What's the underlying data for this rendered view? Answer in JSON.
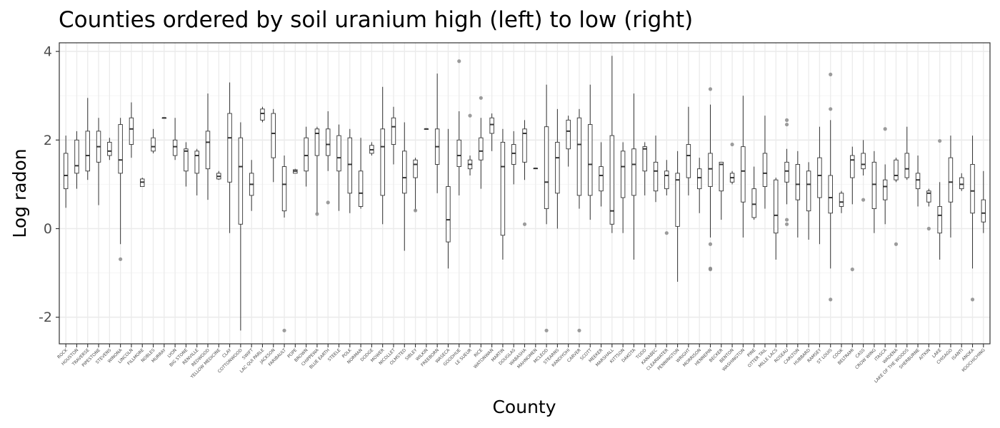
{
  "chart_data": {
    "type": "boxplot",
    "title": "Counties ordered by soil uranium high (left) to low (right)",
    "xlabel": "County",
    "ylabel": "Log radon",
    "ylim": [
      -2.6,
      4.2
    ],
    "yticks": [
      -2,
      0,
      2,
      4
    ],
    "grid": true,
    "legend": "none",
    "colors": {
      "box": "#333333",
      "outlier": "#8c8c8c",
      "grid_major": "#ebebeb",
      "grid_minor": "#f5f5f5",
      "panel_border": "#333333"
    },
    "boxes": [
      {
        "county": "ROCK",
        "q1": 0.9,
        "median": 1.2,
        "q3": 1.7,
        "lower": 0.47,
        "upper": 2.1,
        "outliers": []
      },
      {
        "county": "HOUSTON",
        "q1": 1.25,
        "median": 1.42,
        "q3": 2.0,
        "lower": 0.9,
        "upper": 2.2,
        "outliers": []
      },
      {
        "county": "TRAVERSE",
        "q1": 1.3,
        "median": 1.65,
        "q3": 2.2,
        "lower": 1.1,
        "upper": 2.95,
        "outliers": []
      },
      {
        "county": "PIPESTONE",
        "q1": 1.5,
        "median": 1.85,
        "q3": 2.2,
        "lower": 0.53,
        "upper": 2.5,
        "outliers": []
      },
      {
        "county": "STEVENS",
        "q1": 1.65,
        "median": 1.75,
        "q3": 1.95,
        "lower": 1.55,
        "upper": 2.05,
        "outliers": []
      },
      {
        "county": "WINONA",
        "q1": 1.25,
        "median": 1.55,
        "q3": 2.35,
        "lower": -0.35,
        "upper": 2.5,
        "outliers": [
          -0.69
        ]
      },
      {
        "county": "LINCOLN",
        "q1": 1.9,
        "median": 2.25,
        "q3": 2.5,
        "lower": 1.6,
        "upper": 2.85,
        "outliers": []
      },
      {
        "county": "FILLMORE",
        "q1": 0.95,
        "median": 1.05,
        "q3": 1.12,
        "lower": 0.95,
        "upper": 1.15,
        "outliers": []
      },
      {
        "county": "NOBLES",
        "q1": 1.75,
        "median": 1.85,
        "q3": 2.05,
        "lower": 1.7,
        "upper": 2.25,
        "outliers": []
      },
      {
        "county": "MURRAY",
        "q1": 2.5,
        "median": 2.5,
        "q3": 2.5,
        "lower": 2.5,
        "upper": 2.5,
        "outliers": []
      },
      {
        "county": "LYON",
        "q1": 1.65,
        "median": 1.85,
        "q3": 2.0,
        "lower": 1.55,
        "upper": 2.5,
        "outliers": []
      },
      {
        "county": "BIG STONE",
        "q1": 1.3,
        "median": 1.75,
        "q3": 1.8,
        "lower": 0.95,
        "upper": 1.95,
        "outliers": []
      },
      {
        "county": "RENVILLE",
        "q1": 1.25,
        "median": 1.65,
        "q3": 1.75,
        "lower": 0.75,
        "upper": 1.8,
        "outliers": []
      },
      {
        "county": "REDWOOD",
        "q1": 1.35,
        "median": 1.95,
        "q3": 2.2,
        "lower": 0.65,
        "upper": 3.05,
        "outliers": []
      },
      {
        "county": "YELLOW MEDICINE",
        "q1": 1.12,
        "median": 1.18,
        "q3": 1.25,
        "lower": 1.1,
        "upper": 1.3,
        "outliers": []
      },
      {
        "county": "CLAY",
        "q1": 1.05,
        "median": 2.05,
        "q3": 2.6,
        "lower": -0.1,
        "upper": 3.3,
        "outliers": []
      },
      {
        "county": "COTTONWOOD",
        "q1": 0.1,
        "median": 1.4,
        "q3": 2.05,
        "lower": -2.3,
        "upper": 2.4,
        "outliers": []
      },
      {
        "county": "SWIFT",
        "q1": 0.75,
        "median": 1.0,
        "q3": 1.25,
        "lower": 0.4,
        "upper": 1.55,
        "outliers": []
      },
      {
        "county": "LAC QUI PARLE",
        "q1": 2.45,
        "median": 2.6,
        "q3": 2.7,
        "lower": 2.4,
        "upper": 2.75,
        "outliers": []
      },
      {
        "county": "JACKSON",
        "q1": 1.6,
        "median": 2.15,
        "q3": 2.6,
        "lower": 1.05,
        "upper": 2.7,
        "outliers": []
      },
      {
        "county": "FARIBAULT",
        "q1": 0.4,
        "median": 1.0,
        "q3": 1.4,
        "lower": 0.25,
        "upper": 1.65,
        "outliers": [
          -2.3
        ]
      },
      {
        "county": "POPE",
        "q1": 1.25,
        "median": 1.3,
        "q3": 1.33,
        "lower": 1.25,
        "upper": 1.35,
        "outliers": []
      },
      {
        "county": "BROWN",
        "q1": 1.3,
        "median": 1.65,
        "q3": 2.05,
        "lower": 0.95,
        "upper": 2.3,
        "outliers": []
      },
      {
        "county": "CHIPPEWA",
        "q1": 1.65,
        "median": 2.15,
        "q3": 2.25,
        "lower": 0.33,
        "upper": 2.3,
        "outliers": [
          0.33
        ]
      },
      {
        "county": "BLUE EARTH",
        "q1": 1.65,
        "median": 1.9,
        "q3": 2.25,
        "lower": 1.3,
        "upper": 2.65,
        "outliers": [
          0.59
        ]
      },
      {
        "county": "STEELE",
        "q1": 1.3,
        "median": 1.6,
        "q3": 2.1,
        "lower": 0.4,
        "upper": 2.35,
        "outliers": []
      },
      {
        "county": "POLK",
        "q1": 0.8,
        "median": 1.45,
        "q3": 2.05,
        "lower": 0.35,
        "upper": 2.25,
        "outliers": []
      },
      {
        "county": "NORMAN",
        "q1": 0.5,
        "median": 0.8,
        "q3": 1.3,
        "lower": 0.45,
        "upper": 2.05,
        "outliers": []
      },
      {
        "county": "DODGE",
        "q1": 1.7,
        "median": 1.78,
        "q3": 1.88,
        "lower": 1.65,
        "upper": 1.95,
        "outliers": []
      },
      {
        "county": "MOWER",
        "q1": 0.75,
        "median": 1.85,
        "q3": 2.25,
        "lower": 0.1,
        "upper": 3.2,
        "outliers": []
      },
      {
        "county": "NICOLLET",
        "q1": 1.9,
        "median": 2.3,
        "q3": 2.5,
        "lower": 1.45,
        "upper": 2.75,
        "outliers": []
      },
      {
        "county": "OLMSTED",
        "q1": 0.8,
        "median": 1.15,
        "q3": 1.75,
        "lower": -0.5,
        "upper": 2.4,
        "outliers": []
      },
      {
        "county": "SIBLEY",
        "q1": 1.15,
        "median": 1.45,
        "q3": 1.55,
        "lower": 0.4,
        "upper": 1.6,
        "outliers": [
          0.41
        ]
      },
      {
        "county": "WILKIN",
        "q1": 2.25,
        "median": 2.25,
        "q3": 2.25,
        "lower": 2.25,
        "upper": 2.25,
        "outliers": []
      },
      {
        "county": "FREEBORN",
        "q1": 1.45,
        "median": 1.85,
        "q3": 2.25,
        "lower": 0.8,
        "upper": 3.5,
        "outliers": []
      },
      {
        "county": "WASECA",
        "q1": -0.3,
        "median": 0.2,
        "q3": 0.95,
        "lower": -0.9,
        "upper": 2.25,
        "outliers": []
      },
      {
        "county": "GOODHUE",
        "q1": 1.4,
        "median": 1.65,
        "q3": 2.0,
        "lower": 0.75,
        "upper": 2.65,
        "outliers": [
          3.78
        ]
      },
      {
        "county": "LE SUEUR",
        "q1": 1.35,
        "median": 1.45,
        "q3": 1.55,
        "lower": 1.2,
        "upper": 1.65,
        "outliers": [
          2.55
        ]
      },
      {
        "county": "RICE",
        "q1": 1.55,
        "median": 1.75,
        "q3": 2.05,
        "lower": 0.9,
        "upper": 2.5,
        "outliers": [
          2.95
        ]
      },
      {
        "county": "WATONWAN",
        "q1": 2.15,
        "median": 2.35,
        "q3": 2.5,
        "lower": 1.75,
        "upper": 2.6,
        "outliers": []
      },
      {
        "county": "MARTIN",
        "q1": -0.15,
        "median": 1.4,
        "q3": 1.95,
        "lower": -0.7,
        "upper": 2.25,
        "outliers": []
      },
      {
        "county": "DOUGLAS",
        "q1": 1.45,
        "median": 1.7,
        "q3": 1.9,
        "lower": 1.0,
        "upper": 2.2,
        "outliers": []
      },
      {
        "county": "WABASHA",
        "q1": 1.5,
        "median": 2.15,
        "q3": 2.25,
        "lower": 1.1,
        "upper": 2.45,
        "outliers": [
          0.1
        ]
      },
      {
        "county": "MAHNOMEN",
        "q1": 1.36,
        "median": 1.36,
        "q3": 1.36,
        "lower": 1.36,
        "upper": 1.36,
        "outliers": []
      },
      {
        "county": "MCLEOD",
        "q1": 0.45,
        "median": 1.05,
        "q3": 2.3,
        "lower": 0.1,
        "upper": 3.25,
        "outliers": [
          -2.3
        ]
      },
      {
        "county": "STEARNS",
        "q1": 0.8,
        "median": 1.6,
        "q3": 1.95,
        "lower": 0.0,
        "upper": 2.7,
        "outliers": []
      },
      {
        "county": "KANDIYOHI",
        "q1": 1.8,
        "median": 2.2,
        "q3": 2.45,
        "lower": 1.4,
        "upper": 2.55,
        "outliers": []
      },
      {
        "county": "CARVER",
        "q1": 0.75,
        "median": 1.9,
        "q3": 2.5,
        "lower": 0.45,
        "upper": 2.7,
        "outliers": [
          -2.3
        ]
      },
      {
        "county": "SCOTT",
        "q1": 0.75,
        "median": 1.45,
        "q3": 2.35,
        "lower": 0.2,
        "upper": 3.25,
        "outliers": []
      },
      {
        "county": "MEEKER",
        "q1": 0.85,
        "median": 1.2,
        "q3": 1.4,
        "lower": 0.5,
        "upper": 1.95,
        "outliers": []
      },
      {
        "county": "MARSHALL",
        "q1": 0.1,
        "median": 0.4,
        "q3": 2.1,
        "lower": -0.1,
        "upper": 3.9,
        "outliers": []
      },
      {
        "county": "KITTSON",
        "q1": 0.7,
        "median": 1.4,
        "q3": 1.75,
        "lower": -0.1,
        "upper": 1.95,
        "outliers": []
      },
      {
        "county": "DAKOTA",
        "q1": 0.75,
        "median": 1.45,
        "q3": 1.8,
        "lower": -0.7,
        "upper": 3.05,
        "outliers": []
      },
      {
        "county": "TODD",
        "q1": 1.3,
        "median": 1.8,
        "q3": 1.85,
        "lower": 0.75,
        "upper": 1.95,
        "outliers": []
      },
      {
        "county": "KANABEC",
        "q1": 0.85,
        "median": 1.3,
        "q3": 1.5,
        "lower": 0.6,
        "upper": 2.1,
        "outliers": []
      },
      {
        "county": "CLEARWATER",
        "q1": 0.9,
        "median": 1.2,
        "q3": 1.3,
        "lower": 0.75,
        "upper": 1.55,
        "outliers": [
          -0.1
        ]
      },
      {
        "county": "PENNINGTON",
        "q1": 0.05,
        "median": 1.1,
        "q3": 1.25,
        "lower": -1.2,
        "upper": 1.75,
        "outliers": []
      },
      {
        "county": "WRIGHT",
        "q1": 1.15,
        "median": 1.65,
        "q3": 1.9,
        "lower": 0.75,
        "upper": 2.75,
        "outliers": []
      },
      {
        "county": "MORRISON",
        "q1": 0.9,
        "median": 1.15,
        "q3": 1.35,
        "lower": 0.35,
        "upper": 1.6,
        "outliers": []
      },
      {
        "county": "HENNEPIN",
        "q1": 0.95,
        "median": 1.35,
        "q3": 1.7,
        "lower": -0.2,
        "upper": 2.8,
        "outliers": [
          3.15,
          -0.35,
          -0.9,
          -0.92
        ]
      },
      {
        "county": "BECKER",
        "q1": 0.85,
        "median": 1.45,
        "q3": 1.5,
        "lower": 0.2,
        "upper": 1.5,
        "outliers": []
      },
      {
        "county": "BENTON",
        "q1": 1.05,
        "median": 1.15,
        "q3": 1.25,
        "lower": 1.0,
        "upper": 1.3,
        "outliers": [
          1.9
        ]
      },
      {
        "county": "WASHINGTON",
        "q1": 0.6,
        "median": 1.3,
        "q3": 1.85,
        "lower": -0.2,
        "upper": 3.0,
        "outliers": []
      },
      {
        "county": "PINE",
        "q1": 0.25,
        "median": 0.55,
        "q3": 0.9,
        "lower": 0.2,
        "upper": 1.4,
        "outliers": []
      },
      {
        "county": "OTTER TAIL",
        "q1": 0.95,
        "median": 1.25,
        "q3": 1.7,
        "lower": 0.45,
        "upper": 2.55,
        "outliers": []
      },
      {
        "county": "MILLE LACS",
        "q1": -0.1,
        "median": 0.3,
        "q3": 1.1,
        "lower": -0.7,
        "upper": 1.15,
        "outliers": []
      },
      {
        "county": "ROSEAU",
        "q1": 1.05,
        "median": 1.3,
        "q3": 1.5,
        "lower": 0.55,
        "upper": 1.8,
        "outliers": [
          2.45,
          2.35,
          0.2,
          0.1
        ]
      },
      {
        "county": "CARLTON",
        "q1": 0.65,
        "median": 1.0,
        "q3": 1.45,
        "lower": -0.2,
        "upper": 1.75,
        "outliers": []
      },
      {
        "county": "HUBBARD",
        "q1": 0.4,
        "median": 1.0,
        "q3": 1.3,
        "lower": -0.25,
        "upper": 1.5,
        "outliers": []
      },
      {
        "county": "RAMSEY",
        "q1": 0.7,
        "median": 1.2,
        "q3": 1.6,
        "lower": -0.35,
        "upper": 2.3,
        "outliers": []
      },
      {
        "county": "ST LOUIS",
        "q1": 0.35,
        "median": 0.7,
        "q3": 1.2,
        "lower": -0.9,
        "upper": 2.45,
        "outliers": [
          3.48,
          2.7,
          -1.6
        ]
      },
      {
        "county": "COOK",
        "q1": 0.5,
        "median": 0.6,
        "q3": 0.8,
        "lower": 0.35,
        "upper": 0.85,
        "outliers": []
      },
      {
        "county": "BELTRAMI",
        "q1": 1.15,
        "median": 1.55,
        "q3": 1.65,
        "lower": 0.55,
        "upper": 1.85,
        "outliers": [
          -0.92
        ]
      },
      {
        "county": "CASS",
        "q1": 1.35,
        "median": 1.45,
        "q3": 1.7,
        "lower": 1.2,
        "upper": 2.0,
        "outliers": [
          0.65
        ]
      },
      {
        "county": "CROW WING",
        "q1": 0.45,
        "median": 1.0,
        "q3": 1.5,
        "lower": -0.1,
        "upper": 1.75,
        "outliers": []
      },
      {
        "county": "ITASCA",
        "q1": 0.65,
        "median": 0.95,
        "q3": 1.1,
        "lower": 0.1,
        "upper": 1.45,
        "outliers": [
          2.25
        ]
      },
      {
        "county": "WADENA",
        "q1": 1.1,
        "median": 1.2,
        "q3": 1.55,
        "lower": 1.05,
        "upper": 1.6,
        "outliers": [
          -0.35
        ]
      },
      {
        "county": "LAKE OF THE WOODS",
        "q1": 1.15,
        "median": 1.35,
        "q3": 1.7,
        "lower": 1.1,
        "upper": 2.3,
        "outliers": []
      },
      {
        "county": "SHERBURNE",
        "q1": 0.9,
        "median": 1.1,
        "q3": 1.25,
        "lower": 0.5,
        "upper": 1.65,
        "outliers": []
      },
      {
        "county": "AITKIN",
        "q1": 0.6,
        "median": 0.8,
        "q3": 0.85,
        "lower": 0.5,
        "upper": 0.9,
        "outliers": [
          0.0
        ]
      },
      {
        "county": "LAKE",
        "q1": -0.1,
        "median": 0.3,
        "q3": 0.5,
        "lower": -0.7,
        "upper": 1.05,
        "outliers": [
          1.98
        ]
      },
      {
        "county": "CHISAGO",
        "q1": 0.6,
        "median": 1.05,
        "q3": 1.6,
        "lower": -0.2,
        "upper": 2.1,
        "outliers": []
      },
      {
        "county": "ISANTI",
        "q1": 0.9,
        "median": 1.0,
        "q3": 1.15,
        "lower": 0.85,
        "upper": 1.25,
        "outliers": []
      },
      {
        "county": "ANOKA",
        "q1": 0.35,
        "median": 0.85,
        "q3": 1.45,
        "lower": -0.9,
        "upper": 2.1,
        "outliers": [
          -1.6
        ]
      },
      {
        "county": "KOOCHICHING",
        "q1": 0.15,
        "median": 0.35,
        "q3": 0.65,
        "lower": -0.1,
        "upper": 1.3,
        "outliers": []
      }
    ]
  }
}
